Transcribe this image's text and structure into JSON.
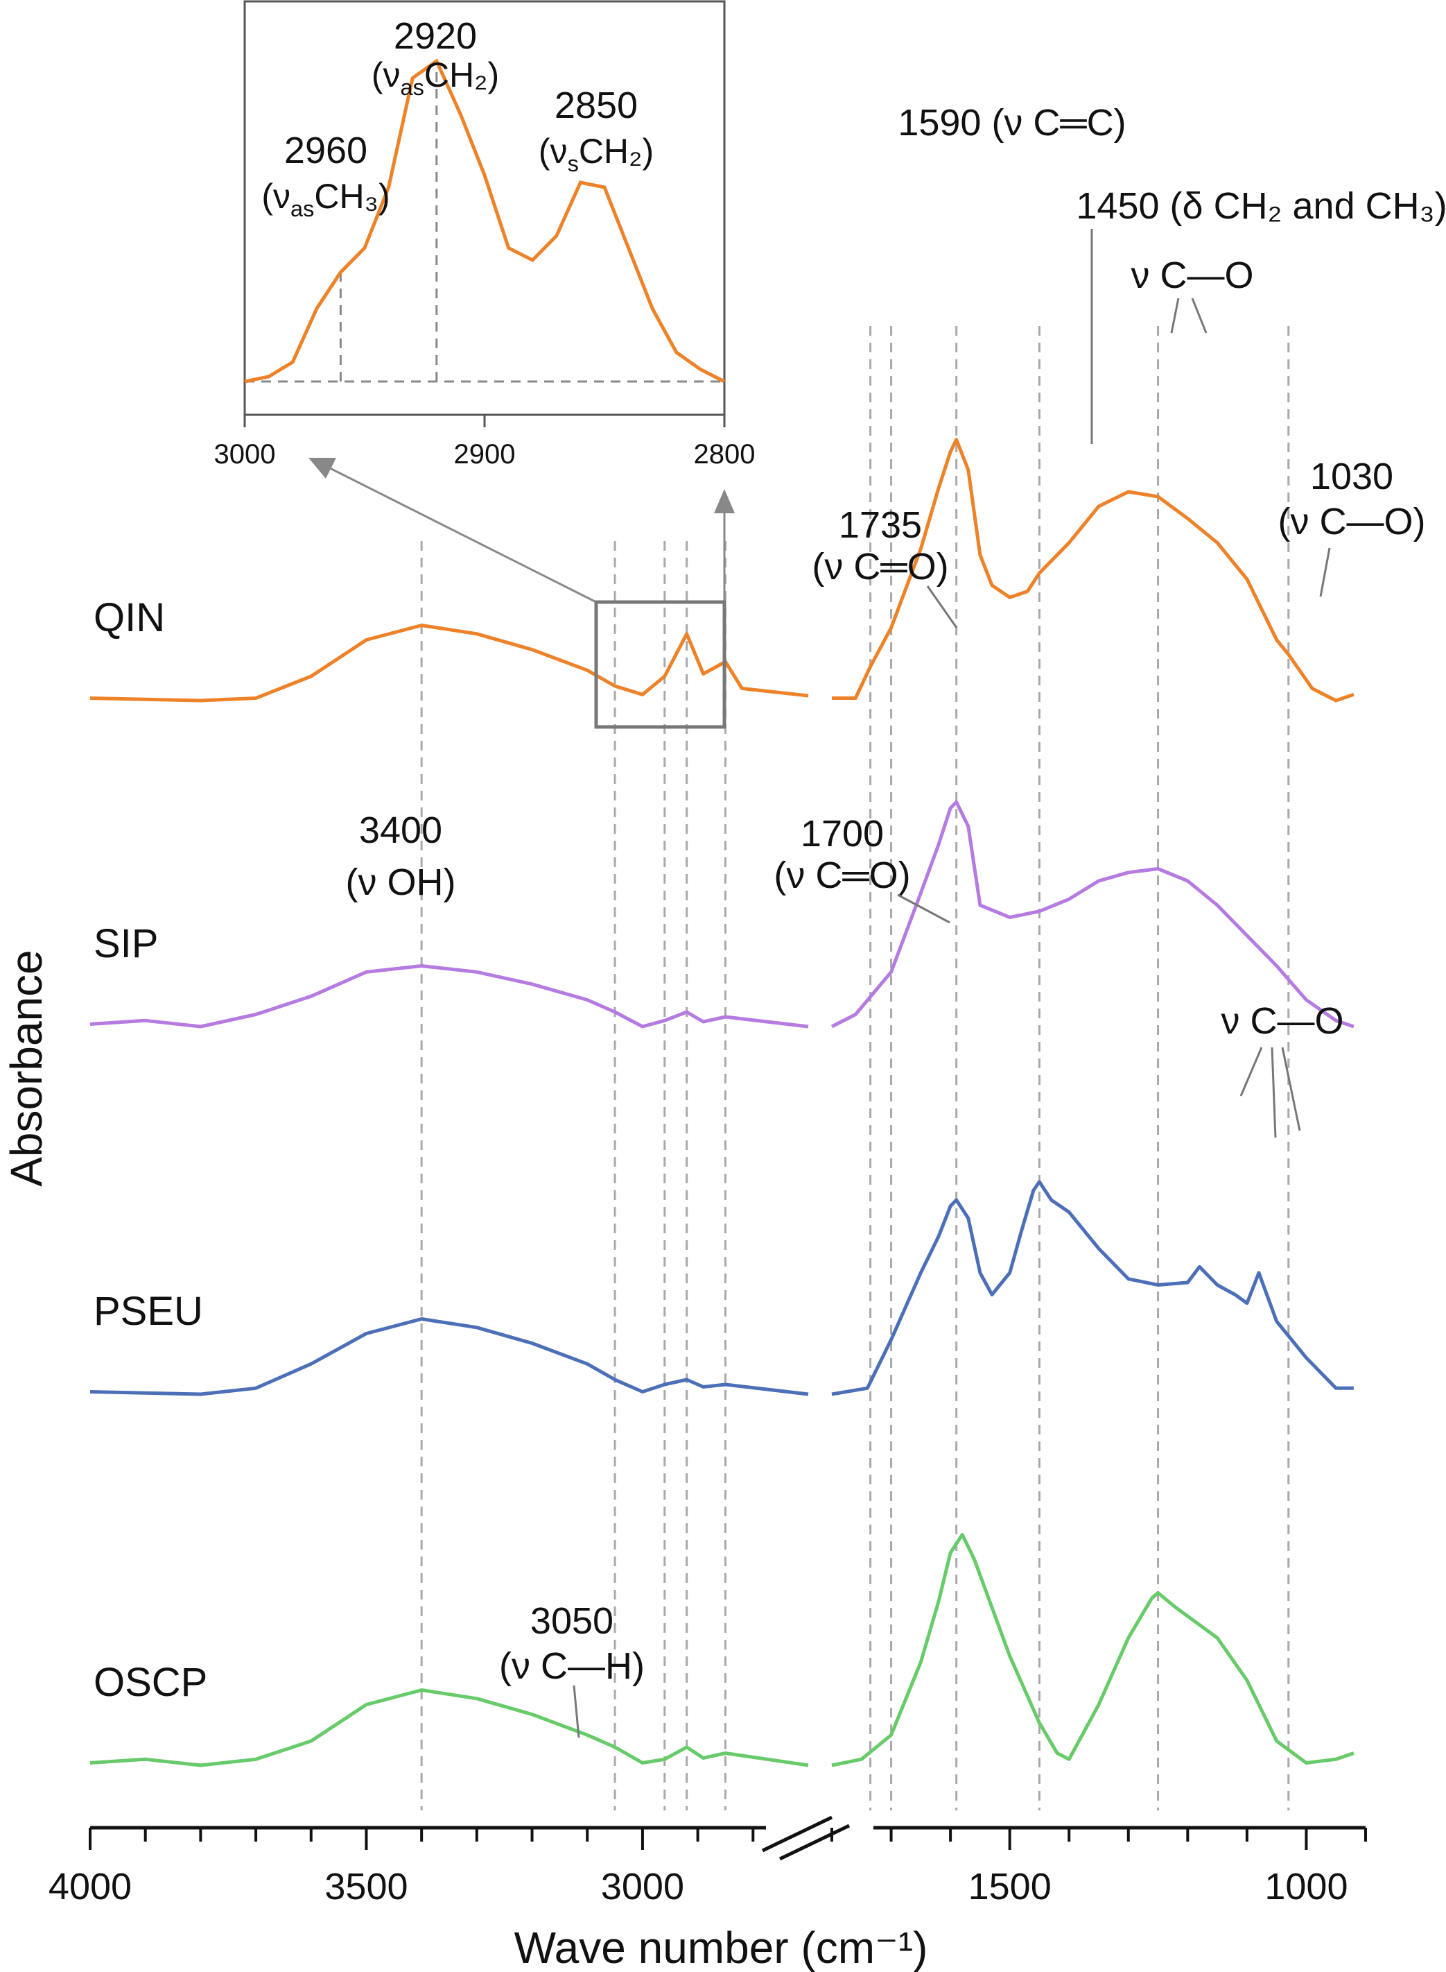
{
  "chart_data": {
    "type": "line",
    "xlabel": "Wave number (cm⁻¹)",
    "ylabel": "Absorbance",
    "x_ticks": [
      "4000",
      "3500",
      "3000",
      "1500",
      "1000"
    ],
    "x_axis_break": [
      "2700",
      "1800"
    ],
    "x_units": "cm-1",
    "series": [
      {
        "name": "QIN",
        "color": "#ee8229",
        "points": [
          [
            4000,
            0.02
          ],
          [
            3800,
            0.0
          ],
          [
            3700,
            0.02
          ],
          [
            3600,
            0.2
          ],
          [
            3500,
            0.5
          ],
          [
            3400,
            0.62
          ],
          [
            3300,
            0.55
          ],
          [
            3200,
            0.42
          ],
          [
            3100,
            0.25
          ],
          [
            3050,
            0.12
          ],
          [
            3000,
            0.05
          ],
          [
            2960,
            0.2
          ],
          [
            2920,
            0.55
          ],
          [
            2890,
            0.22
          ],
          [
            2850,
            0.32
          ],
          [
            2820,
            0.1
          ],
          [
            2700,
            0.04
          ],
          [
            1800,
            0.02
          ],
          [
            1760,
            0.02
          ],
          [
            1735,
            0.28
          ],
          [
            1700,
            0.6
          ],
          [
            1650,
            1.25
          ],
          [
            1620,
            1.75
          ],
          [
            1600,
            2.05
          ],
          [
            1590,
            2.15
          ],
          [
            1570,
            1.9
          ],
          [
            1550,
            1.2
          ],
          [
            1530,
            0.95
          ],
          [
            1500,
            0.85
          ],
          [
            1470,
            0.9
          ],
          [
            1450,
            1.05
          ],
          [
            1400,
            1.3
          ],
          [
            1350,
            1.6
          ],
          [
            1300,
            1.72
          ],
          [
            1250,
            1.68
          ],
          [
            1200,
            1.5
          ],
          [
            1150,
            1.3
          ],
          [
            1100,
            1.0
          ],
          [
            1050,
            0.5
          ],
          [
            1030,
            0.38
          ],
          [
            990,
            0.1
          ],
          [
            950,
            0.0
          ],
          [
            920,
            0.05
          ]
        ]
      },
      {
        "name": "SIP",
        "color": "#b57be1",
        "points": [
          [
            4000,
            0.02
          ],
          [
            3900,
            0.05
          ],
          [
            3800,
            0.0
          ],
          [
            3700,
            0.1
          ],
          [
            3600,
            0.25
          ],
          [
            3500,
            0.45
          ],
          [
            3400,
            0.5
          ],
          [
            3300,
            0.45
          ],
          [
            3200,
            0.35
          ],
          [
            3100,
            0.22
          ],
          [
            3050,
            0.12
          ],
          [
            3000,
            0.0
          ],
          [
            2960,
            0.05
          ],
          [
            2920,
            0.12
          ],
          [
            2890,
            0.04
          ],
          [
            2850,
            0.08
          ],
          [
            2700,
            0.0
          ],
          [
            1800,
            0.0
          ],
          [
            1760,
            0.1
          ],
          [
            1700,
            0.45
          ],
          [
            1650,
            1.1
          ],
          [
            1620,
            1.5
          ],
          [
            1600,
            1.8
          ],
          [
            1590,
            1.85
          ],
          [
            1570,
            1.65
          ],
          [
            1550,
            1.0
          ],
          [
            1500,
            0.9
          ],
          [
            1450,
            0.95
          ],
          [
            1400,
            1.05
          ],
          [
            1350,
            1.2
          ],
          [
            1300,
            1.27
          ],
          [
            1250,
            1.3
          ],
          [
            1200,
            1.2
          ],
          [
            1150,
            1.0
          ],
          [
            1100,
            0.75
          ],
          [
            1050,
            0.5
          ],
          [
            1000,
            0.22
          ],
          [
            950,
            0.05
          ],
          [
            920,
            0.0
          ]
        ]
      },
      {
        "name": "PSEU",
        "color": "#4c6fb8",
        "points": [
          [
            4000,
            0.02
          ],
          [
            3800,
            0.0
          ],
          [
            3700,
            0.05
          ],
          [
            3600,
            0.25
          ],
          [
            3500,
            0.5
          ],
          [
            3400,
            0.62
          ],
          [
            3300,
            0.55
          ],
          [
            3200,
            0.42
          ],
          [
            3100,
            0.25
          ],
          [
            3050,
            0.12
          ],
          [
            3000,
            0.02
          ],
          [
            2960,
            0.08
          ],
          [
            2920,
            0.12
          ],
          [
            2890,
            0.06
          ],
          [
            2850,
            0.08
          ],
          [
            2700,
            0.0
          ],
          [
            1800,
            0.0
          ],
          [
            1740,
            0.05
          ],
          [
            1700,
            0.45
          ],
          [
            1650,
            1.0
          ],
          [
            1620,
            1.3
          ],
          [
            1600,
            1.55
          ],
          [
            1590,
            1.6
          ],
          [
            1570,
            1.45
          ],
          [
            1550,
            1.0
          ],
          [
            1530,
            0.82
          ],
          [
            1500,
            1.0
          ],
          [
            1480,
            1.35
          ],
          [
            1460,
            1.68
          ],
          [
            1450,
            1.75
          ],
          [
            1430,
            1.6
          ],
          [
            1400,
            1.5
          ],
          [
            1350,
            1.2
          ],
          [
            1300,
            0.95
          ],
          [
            1250,
            0.9
          ],
          [
            1200,
            0.92
          ],
          [
            1180,
            1.05
          ],
          [
            1150,
            0.9
          ],
          [
            1120,
            0.82
          ],
          [
            1100,
            0.75
          ],
          [
            1080,
            1.0
          ],
          [
            1050,
            0.6
          ],
          [
            1000,
            0.3
          ],
          [
            950,
            0.05
          ],
          [
            920,
            0.05
          ]
        ]
      },
      {
        "name": "OSCP",
        "color": "#67cb6a",
        "points": [
          [
            4000,
            0.02
          ],
          [
            3900,
            0.05
          ],
          [
            3800,
            0.0
          ],
          [
            3700,
            0.05
          ],
          [
            3600,
            0.2
          ],
          [
            3500,
            0.5
          ],
          [
            3400,
            0.62
          ],
          [
            3300,
            0.55
          ],
          [
            3200,
            0.42
          ],
          [
            3100,
            0.25
          ],
          [
            3050,
            0.15
          ],
          [
            3000,
            0.02
          ],
          [
            2960,
            0.05
          ],
          [
            2920,
            0.15
          ],
          [
            2890,
            0.06
          ],
          [
            2850,
            0.1
          ],
          [
            2700,
            0.0
          ],
          [
            1800,
            0.0
          ],
          [
            1750,
            0.05
          ],
          [
            1700,
            0.25
          ],
          [
            1650,
            0.85
          ],
          [
            1620,
            1.35
          ],
          [
            1600,
            1.75
          ],
          [
            1580,
            1.9
          ],
          [
            1560,
            1.7
          ],
          [
            1530,
            1.3
          ],
          [
            1500,
            0.9
          ],
          [
            1450,
            0.35
          ],
          [
            1420,
            0.1
          ],
          [
            1400,
            0.05
          ],
          [
            1350,
            0.5
          ],
          [
            1300,
            1.05
          ],
          [
            1260,
            1.38
          ],
          [
            1250,
            1.42
          ],
          [
            1220,
            1.3
          ],
          [
            1150,
            1.05
          ],
          [
            1100,
            0.7
          ],
          [
            1050,
            0.2
          ],
          [
            1000,
            0.02
          ],
          [
            950,
            0.05
          ],
          [
            920,
            0.1
          ]
        ]
      }
    ],
    "reference_lines": [
      "3400",
      "3050",
      "2960",
      "2920",
      "2850",
      "1735",
      "1700",
      "1590",
      "1450",
      "1250",
      "1030"
    ],
    "annotations": [
      {
        "wn": "3400",
        "text": "3400",
        "sub": "(ν OH)"
      },
      {
        "wn": "3050",
        "text": "3050",
        "sub": "(ν C—H)"
      },
      {
        "wn": "1735",
        "text": "1735",
        "sub": "(ν C═O)"
      },
      {
        "wn": "1700",
        "text": "1700",
        "sub": "(ν C═O)"
      },
      {
        "wn": "1590",
        "text": "1590 (ν C═C)"
      },
      {
        "wn": "1450",
        "text": "1450 (δ CH₂ and CH₃)"
      },
      {
        "wn": "1250",
        "text": "ν C—O"
      },
      {
        "wn": "1030",
        "text": "1030",
        "sub": "(ν C—O)"
      },
      {
        "wn": "1180",
        "text": "ν C—O"
      }
    ],
    "inset": {
      "xlim": [
        3000,
        2800
      ],
      "x_ticks": [
        "3000",
        "2900",
        "2800"
      ],
      "series": "QIN",
      "points": [
        [
          3000,
          0.0
        ],
        [
          2990,
          0.02
        ],
        [
          2980,
          0.08
        ],
        [
          2970,
          0.3
        ],
        [
          2960,
          0.45
        ],
        [
          2950,
          0.55
        ],
        [
          2940,
          0.8
        ],
        [
          2930,
          1.25
        ],
        [
          2920,
          1.32
        ],
        [
          2910,
          1.1
        ],
        [
          2900,
          0.85
        ],
        [
          2890,
          0.55
        ],
        [
          2880,
          0.5
        ],
        [
          2870,
          0.6
        ],
        [
          2860,
          0.82
        ],
        [
          2850,
          0.8
        ],
        [
          2840,
          0.55
        ],
        [
          2830,
          0.3
        ],
        [
          2820,
          0.12
        ],
        [
          2810,
          0.05
        ],
        [
          2800,
          0.0
        ]
      ],
      "annotations": [
        {
          "text": "2920",
          "sub": "(ν",
          "subscript": "as",
          "tail": "CH₂)"
        },
        {
          "text": "2850",
          "sub": "(ν",
          "subscript": "s",
          "tail": "CH₂)"
        },
        {
          "text": "2960",
          "sub": "(ν",
          "subscript": "as",
          "tail": "CH₃)"
        }
      ]
    }
  }
}
